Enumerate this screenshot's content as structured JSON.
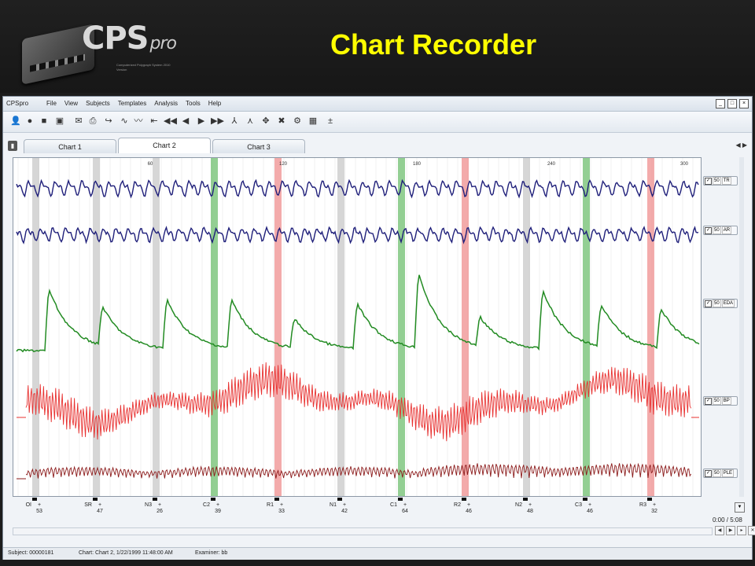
{
  "slide": {
    "title": "Chart Recorder",
    "logo_text": "CPS",
    "logo_suffix": "pro",
    "logo_subtext": "Computerized Polygraph System 2010 Version"
  },
  "app": {
    "name": "CPSpro",
    "menu": [
      "File",
      "View",
      "Subjects",
      "Templates",
      "Analysis",
      "Tools",
      "Help"
    ],
    "window_buttons": [
      "_",
      "□",
      "×"
    ],
    "toolbar_icons": [
      "user-add-icon",
      "user-icon",
      "user-silhouette-icon",
      "id-card-icon",
      "mail-icon",
      "print-icon",
      "export-icon",
      "wave-icon",
      "sine-icon",
      "go-start-icon",
      "rewind-icon",
      "step-back-icon",
      "play-icon",
      "fast-forward-icon",
      "score-icon",
      "score2-icon",
      "move-icon",
      "crosshair-icon",
      "table-icon",
      "sign-icon"
    ]
  },
  "tabs": [
    {
      "label": "Chart 1",
      "active": false
    },
    {
      "label": "Chart 2",
      "active": true
    },
    {
      "label": "Chart 3",
      "active": false
    }
  ],
  "channels": [
    {
      "label": "TR",
      "gain": "50",
      "checked": true,
      "color": "#1f1f7a"
    },
    {
      "label": "AR",
      "gain": "50",
      "checked": true,
      "color": "#1f1f7a"
    },
    {
      "label": "EDA",
      "gain": "50",
      "checked": true,
      "color": "#228b22"
    },
    {
      "label": "BP",
      "gain": "50",
      "checked": true,
      "color": "#e8302f"
    },
    {
      "label": "PLE",
      "gain": "50",
      "checked": true,
      "color": "#8b1a1a"
    }
  ],
  "time_ticks": [
    "60",
    "120",
    "180",
    "240",
    "300"
  ],
  "questions": [
    {
      "label": "OI",
      "score": "53",
      "type": "neutral"
    },
    {
      "label": "SR",
      "score": "47",
      "type": "neutral"
    },
    {
      "label": "N3",
      "score": "26",
      "type": "neutral"
    },
    {
      "label": "C2",
      "score": "39",
      "type": "comparison"
    },
    {
      "label": "R1",
      "score": "33",
      "type": "relevant"
    },
    {
      "label": "N1",
      "score": "42",
      "type": "neutral"
    },
    {
      "label": "C1",
      "score": "64",
      "type": "comparison"
    },
    {
      "label": "R2",
      "score": "46",
      "type": "relevant"
    },
    {
      "label": "N2",
      "score": "48",
      "type": "neutral"
    },
    {
      "label": "C3",
      "score": "46",
      "type": "comparison"
    },
    {
      "label": "R3",
      "score": "32",
      "type": "relevant"
    }
  ],
  "colors": {
    "neutral_band": "#c8c8c8",
    "comparison_band": "#6fbf6f",
    "relevant_band": "#ef8f8f"
  },
  "time_readout": "0:00 / 5:08",
  "status": {
    "subject": "Subject: 00000181",
    "chart": "Chart: Chart 2, 1/22/1999 11:48:00 AM",
    "examiner": "Examiner: bb"
  }
}
